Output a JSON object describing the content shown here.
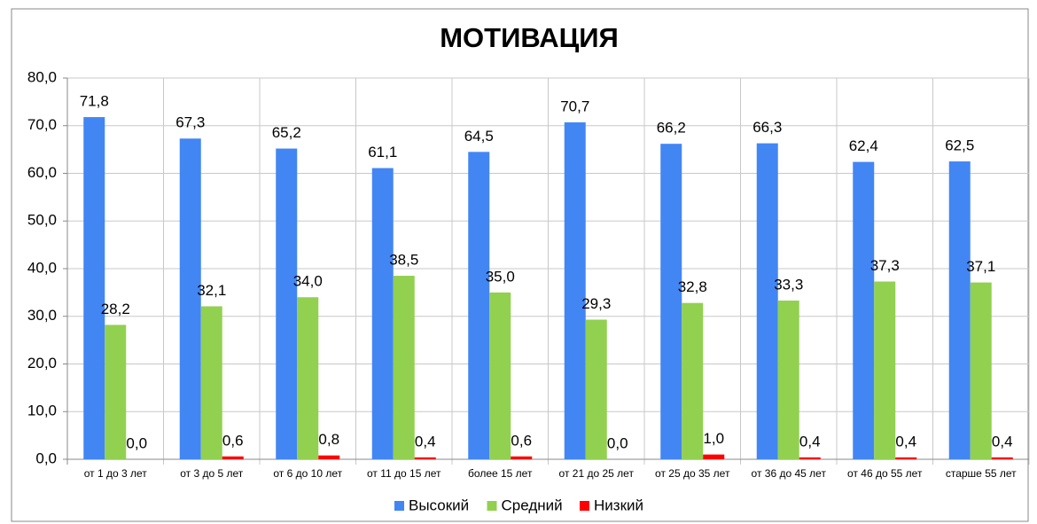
{
  "chart_data": {
    "type": "bar",
    "title": "МОТИВАЦИЯ",
    "categories": [
      "от 1 до 3 лет",
      "от 3 до 5 лет",
      "от 6 до 10 лет",
      "от 11 до 15 лет",
      "более 15 лет",
      "от 21 до 25 лет",
      "от 25 до 35 лет",
      "от 36 до 45 лет",
      "от 46 до 55 лет",
      "старше 55 лет"
    ],
    "series": [
      {
        "name": "Высокий",
        "color": "#4286f4",
        "values": [
          71.8,
          67.3,
          65.2,
          61.1,
          64.5,
          70.7,
          66.2,
          66.3,
          62.4,
          62.5
        ],
        "value_labels": [
          "71,8",
          "67,3",
          "65,2",
          "61,1",
          "64,5",
          "70,7",
          "66,2",
          "66,3",
          "62,4",
          "62,5"
        ]
      },
      {
        "name": "Средний",
        "color": "#92d050",
        "values": [
          28.2,
          32.1,
          34.0,
          38.5,
          35.0,
          29.3,
          32.8,
          33.3,
          37.3,
          37.1
        ],
        "value_labels": [
          "28,2",
          "32,1",
          "34,0",
          "38,5",
          "35,0",
          "29,3",
          "32,8",
          "33,3",
          "37,3",
          "37,1"
        ]
      },
      {
        "name": "Низкий",
        "color": "#ff0000",
        "values": [
          0.0,
          0.6,
          0.8,
          0.4,
          0.6,
          0.0,
          1.0,
          0.4,
          0.4,
          0.4
        ],
        "value_labels": [
          "0,0",
          "0,6",
          "0,8",
          "0,4",
          "0,6",
          "0,0",
          "1,0",
          "0,4",
          "0,4",
          "0,4"
        ]
      }
    ],
    "ylim": [
      0,
      80
    ],
    "yticks": [
      {
        "value": 0,
        "label": "0,0"
      },
      {
        "value": 10,
        "label": "10,0"
      },
      {
        "value": 20,
        "label": "20,0"
      },
      {
        "value": 30,
        "label": "30,0"
      },
      {
        "value": 40,
        "label": "40,0"
      },
      {
        "value": 50,
        "label": "50,0"
      },
      {
        "value": 60,
        "label": "60,0"
      },
      {
        "value": 70,
        "label": "70,0"
      },
      {
        "value": 80,
        "label": "80,0"
      }
    ],
    "grid": true,
    "legend": "bottom"
  }
}
